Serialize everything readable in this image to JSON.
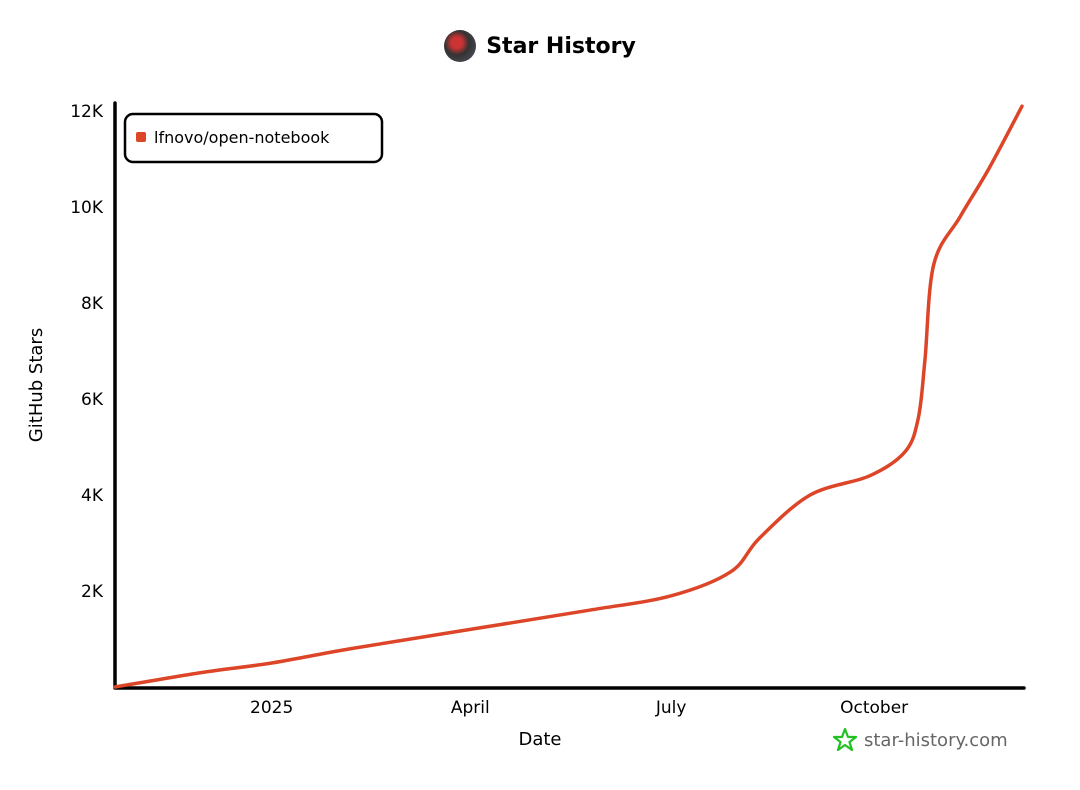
{
  "header": {
    "title": "Star History",
    "avatar_icon": "repo-owner-avatar"
  },
  "footer": {
    "brand": "star-history.com",
    "icon": "star-outline-icon",
    "icon_color": "#22c022"
  },
  "chart_data": {
    "type": "line",
    "title": "Star History",
    "xlabel": "Date",
    "ylabel": "GitHub Stars",
    "x_ticks": [
      {
        "label": "2025",
        "date": "2025-01-01"
      },
      {
        "label": "April",
        "date": "2025-04-01"
      },
      {
        "label": "July",
        "date": "2025-07-01"
      },
      {
        "label": "October",
        "date": "2025-10-01"
      }
    ],
    "y_ticks": [
      {
        "label": "2K",
        "value": 2000
      },
      {
        "label": "4K",
        "value": 4000
      },
      {
        "label": "6K",
        "value": 6000
      },
      {
        "label": "8K",
        "value": 8000
      },
      {
        "label": "10K",
        "value": 10000
      },
      {
        "label": "12K",
        "value": 12000
      }
    ],
    "xlim": [
      "2024-10-22",
      "2025-12-07"
    ],
    "ylim": [
      0,
      12000
    ],
    "grid": false,
    "legend": "top-left",
    "series": [
      {
        "name": "lfnovo/open-notebook",
        "color": "#dd4528",
        "points": [
          [
            "2024-10-22",
            0
          ],
          [
            "2024-11-30",
            300
          ],
          [
            "2025-01-01",
            500
          ],
          [
            "2025-02-06",
            800
          ],
          [
            "2025-04-01",
            1200
          ],
          [
            "2025-05-25",
            1600
          ],
          [
            "2025-07-01",
            1900
          ],
          [
            "2025-07-28",
            2400
          ],
          [
            "2025-08-10",
            3100
          ],
          [
            "2025-09-02",
            4000
          ],
          [
            "2025-09-29",
            4400
          ],
          [
            "2025-10-15",
            4900
          ],
          [
            "2025-10-21",
            5600
          ],
          [
            "2025-10-24",
            6800
          ],
          [
            "2025-10-28",
            8800
          ],
          [
            "2025-11-09",
            9800
          ],
          [
            "2025-11-22",
            10800
          ],
          [
            "2025-12-07",
            12100
          ]
        ]
      }
    ]
  }
}
